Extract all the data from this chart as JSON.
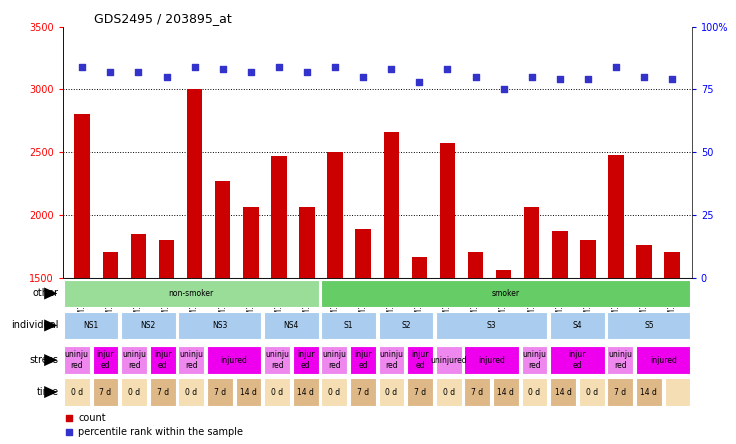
{
  "title": "GDS2495 / 203895_at",
  "samples": [
    "GSM122528",
    "GSM122531",
    "GSM122539",
    "GSM122540",
    "GSM122541",
    "GSM122542",
    "GSM122543",
    "GSM122544",
    "GSM122546",
    "GSM122527",
    "GSM122529",
    "GSM122530",
    "GSM122532",
    "GSM122533",
    "GSM122535",
    "GSM122536",
    "GSM122538",
    "GSM122534",
    "GSM122537",
    "GSM122545",
    "GSM122547",
    "GSM122548"
  ],
  "counts": [
    2800,
    1700,
    1850,
    1800,
    3000,
    2270,
    2060,
    2470,
    2060,
    2500,
    1890,
    2660,
    1660,
    2570,
    1700,
    1560,
    2060,
    1870,
    1800,
    2480,
    1760,
    1700
  ],
  "percentile": [
    84,
    82,
    82,
    80,
    84,
    83,
    82,
    84,
    82,
    84,
    80,
    83,
    78,
    83,
    80,
    75,
    80,
    79,
    79,
    84,
    80,
    79
  ],
  "ylim_left": [
    1500,
    3500
  ],
  "ylim_right": [
    0,
    100
  ],
  "yticks_left": [
    1500,
    2000,
    2500,
    3000,
    3500
  ],
  "yticks_right": [
    0,
    25,
    50,
    75,
    100
  ],
  "bar_color": "#cc0000",
  "dot_color": "#3333cc",
  "bg_color": "#ffffff",
  "other_row": {
    "label": "other",
    "segments": [
      {
        "text": "non-smoker",
        "start": 0,
        "end": 9,
        "color": "#99dd99"
      },
      {
        "text": "smoker",
        "start": 9,
        "end": 22,
        "color": "#66cc66"
      }
    ]
  },
  "individual_row": {
    "label": "individual",
    "segments": [
      {
        "text": "NS1",
        "start": 0,
        "end": 2,
        "color": "#aaccee"
      },
      {
        "text": "NS2",
        "start": 2,
        "end": 4,
        "color": "#aaccee"
      },
      {
        "text": "NS3",
        "start": 4,
        "end": 7,
        "color": "#aaccee"
      },
      {
        "text": "NS4",
        "start": 7,
        "end": 9,
        "color": "#aaccee"
      },
      {
        "text": "S1",
        "start": 9,
        "end": 11,
        "color": "#aaccee"
      },
      {
        "text": "S2",
        "start": 11,
        "end": 13,
        "color": "#aaccee"
      },
      {
        "text": "S3",
        "start": 13,
        "end": 17,
        "color": "#aaccee"
      },
      {
        "text": "S4",
        "start": 17,
        "end": 19,
        "color": "#aaccee"
      },
      {
        "text": "S5",
        "start": 19,
        "end": 22,
        "color": "#aaccee"
      }
    ]
  },
  "stress_row": {
    "label": "stress",
    "segments": [
      {
        "text": "uninju\nred",
        "start": 0,
        "end": 1,
        "color": "#ee88ee"
      },
      {
        "text": "injur\ned",
        "start": 1,
        "end": 2,
        "color": "#ee00ee"
      },
      {
        "text": "uninju\nred",
        "start": 2,
        "end": 3,
        "color": "#ee88ee"
      },
      {
        "text": "injur\ned",
        "start": 3,
        "end": 4,
        "color": "#ee00ee"
      },
      {
        "text": "uninju\nred",
        "start": 4,
        "end": 5,
        "color": "#ee88ee"
      },
      {
        "text": "injured",
        "start": 5,
        "end": 7,
        "color": "#ee00ee"
      },
      {
        "text": "uninju\nred",
        "start": 7,
        "end": 8,
        "color": "#ee88ee"
      },
      {
        "text": "injur\ned",
        "start": 8,
        "end": 9,
        "color": "#ee00ee"
      },
      {
        "text": "uninju\nred",
        "start": 9,
        "end": 10,
        "color": "#ee88ee"
      },
      {
        "text": "injur\ned",
        "start": 10,
        "end": 11,
        "color": "#ee00ee"
      },
      {
        "text": "uninju\nred",
        "start": 11,
        "end": 12,
        "color": "#ee88ee"
      },
      {
        "text": "injur\ned",
        "start": 12,
        "end": 13,
        "color": "#ee00ee"
      },
      {
        "text": "uninjured",
        "start": 13,
        "end": 14,
        "color": "#ee88ee"
      },
      {
        "text": "injured",
        "start": 14,
        "end": 16,
        "color": "#ee00ee"
      },
      {
        "text": "uninju\nred",
        "start": 16,
        "end": 17,
        "color": "#ee88ee"
      },
      {
        "text": "injur\ned",
        "start": 17,
        "end": 19,
        "color": "#ee00ee"
      },
      {
        "text": "uninju\nred",
        "start": 19,
        "end": 20,
        "color": "#ee88ee"
      },
      {
        "text": "injured",
        "start": 20,
        "end": 22,
        "color": "#ee00ee"
      }
    ]
  },
  "time_row": {
    "label": "time",
    "segments": [
      {
        "text": "0 d",
        "start": 0,
        "end": 1,
        "color": "#f5deb3"
      },
      {
        "text": "7 d",
        "start": 1,
        "end": 2,
        "color": "#deb887"
      },
      {
        "text": "0 d",
        "start": 2,
        "end": 3,
        "color": "#f5deb3"
      },
      {
        "text": "7 d",
        "start": 3,
        "end": 4,
        "color": "#deb887"
      },
      {
        "text": "0 d",
        "start": 4,
        "end": 5,
        "color": "#f5deb3"
      },
      {
        "text": "7 d",
        "start": 5,
        "end": 6,
        "color": "#deb887"
      },
      {
        "text": "14 d",
        "start": 6,
        "end": 7,
        "color": "#deb887"
      },
      {
        "text": "0 d",
        "start": 7,
        "end": 8,
        "color": "#f5deb3"
      },
      {
        "text": "14 d",
        "start": 8,
        "end": 9,
        "color": "#deb887"
      },
      {
        "text": "0 d",
        "start": 9,
        "end": 10,
        "color": "#f5deb3"
      },
      {
        "text": "7 d",
        "start": 10,
        "end": 11,
        "color": "#deb887"
      },
      {
        "text": "0 d",
        "start": 11,
        "end": 12,
        "color": "#f5deb3"
      },
      {
        "text": "7 d",
        "start": 12,
        "end": 13,
        "color": "#deb887"
      },
      {
        "text": "0 d",
        "start": 13,
        "end": 14,
        "color": "#f5deb3"
      },
      {
        "text": "7 d",
        "start": 14,
        "end": 15,
        "color": "#deb887"
      },
      {
        "text": "14 d",
        "start": 15,
        "end": 16,
        "color": "#deb887"
      },
      {
        "text": "0 d",
        "start": 16,
        "end": 17,
        "color": "#f5deb3"
      },
      {
        "text": "14 d",
        "start": 17,
        "end": 18,
        "color": "#deb887"
      },
      {
        "text": "0 d",
        "start": 18,
        "end": 19,
        "color": "#f5deb3"
      },
      {
        "text": "7 d",
        "start": 19,
        "end": 20,
        "color": "#deb887"
      },
      {
        "text": "14 d",
        "start": 20,
        "end": 21,
        "color": "#deb887"
      },
      {
        "text": "",
        "start": 21,
        "end": 22,
        "color": "#f5deb3"
      }
    ]
  }
}
